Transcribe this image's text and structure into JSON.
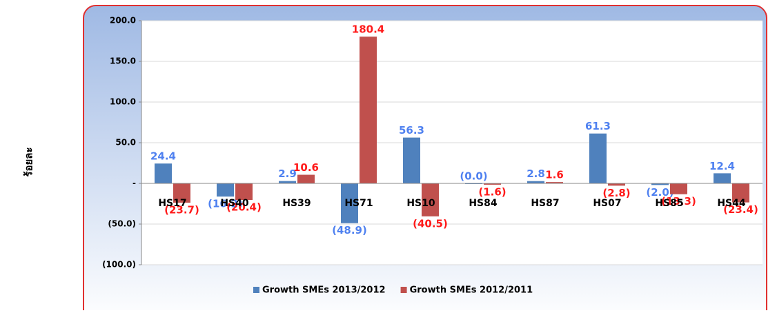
{
  "chart_data": {
    "type": "bar",
    "y_label": "ร้อยละ",
    "categories": [
      "HS17",
      "HS40",
      "HS39",
      "HS71",
      "HS10",
      "HS84",
      "HS87",
      "HS07",
      "HS85",
      "HS44"
    ],
    "series": [
      {
        "name": "Growth SMEs 2013/2012",
        "color": "#4f81bd",
        "values": [
          24.4,
          -16.2,
          2.9,
          -48.9,
          56.3,
          0.0,
          2.8,
          61.3,
          -2.0,
          12.4
        ],
        "value_labels": [
          "24.4",
          "(16.2)",
          "2.9",
          "(48.9)",
          "56.3",
          "(0.0)",
          "2.8",
          "61.3",
          "(2.0)",
          "12.4"
        ],
        "label_color": "#4f81f0"
      },
      {
        "name": "Growth SMEs 2012/2011",
        "color": "#c0504d",
        "values": [
          -23.7,
          -20.4,
          10.6,
          180.4,
          -40.5,
          -1.6,
          1.6,
          -2.8,
          -13.3,
          -23.4
        ],
        "value_labels": [
          "(23.7)",
          "(20.4)",
          "10.6",
          "180.4",
          "(40.5)",
          "(1.6)",
          "1.6",
          "(2.8)",
          "(13.3)",
          "(23.4)"
        ],
        "label_color": "#ff1a1a"
      }
    ],
    "ylim": [
      -100,
      200
    ],
    "yticks": [
      {
        "value": -100,
        "label": "(100.0)"
      },
      {
        "value": -50,
        "label": "(50.0)"
      },
      {
        "value": 0,
        "label": "-"
      },
      {
        "value": 50,
        "label": "50.0"
      },
      {
        "value": 100,
        "label": "100.0"
      },
      {
        "value": 150,
        "label": "150.0"
      },
      {
        "value": 200,
        "label": "200.0"
      }
    ],
    "grid": true,
    "legend": "bottom"
  }
}
